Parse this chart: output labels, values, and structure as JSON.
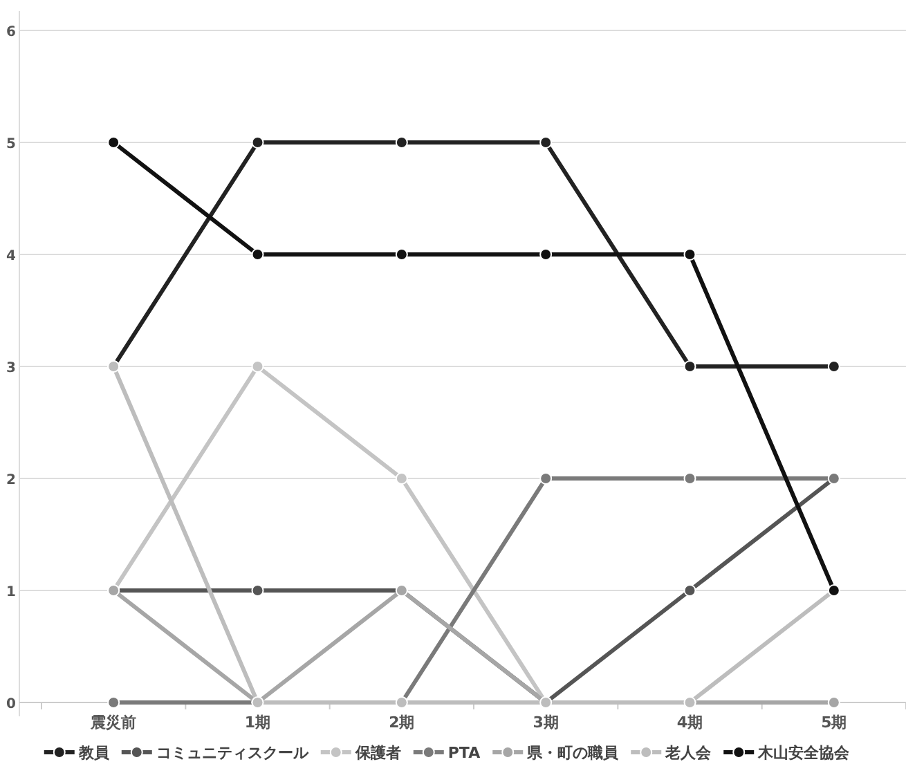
{
  "chart_data": {
    "type": "line",
    "categories": [
      "震災前",
      "1期",
      "2期",
      "3期",
      "4期",
      "5期"
    ],
    "series": [
      {
        "name": "教員",
        "color": "#222222",
        "values": [
          3,
          5,
          5,
          5,
          3,
          3
        ]
      },
      {
        "name": "コミュニティスクール",
        "color": "#555555",
        "values": [
          1,
          1,
          1,
          0,
          1,
          2
        ]
      },
      {
        "name": "保護者",
        "color": "#c4c4c4",
        "values": [
          1,
          3,
          2,
          0,
          0,
          0
        ]
      },
      {
        "name": "PTA",
        "color": "#7a7a7a",
        "values": [
          0,
          0,
          0,
          2,
          2,
          2
        ]
      },
      {
        "name": "県・町の職員",
        "color": "#a6a6a6",
        "values": [
          1,
          0,
          1,
          0,
          0,
          0
        ]
      },
      {
        "name": "老人会",
        "color": "#bdbdbd",
        "values": [
          3,
          0,
          0,
          0,
          0,
          1
        ]
      },
      {
        "name": "木山安全協会",
        "color": "#111111",
        "values": [
          5,
          4,
          4,
          4,
          4,
          1
        ]
      }
    ],
    "ylim": [
      0,
      6
    ],
    "yticks": [
      0,
      1,
      2,
      3,
      4,
      5,
      6
    ],
    "grid": "y",
    "legend": "bottom",
    "marker": "circle",
    "line_style": "solid"
  }
}
